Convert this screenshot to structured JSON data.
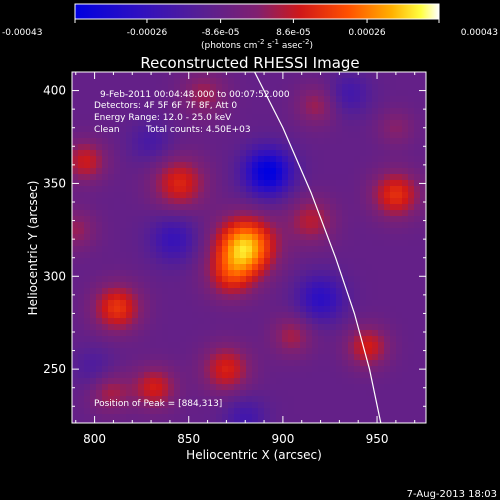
{
  "chart_data": {
    "type": "heatmap",
    "title": "Reconstructed RHESSI Image",
    "xlabel": "Heliocentric X (arcsec)",
    "ylabel": "Heliocentric Y (arcsec)",
    "xlim": [
      788,
      976
    ],
    "ylim": [
      221,
      410
    ],
    "x_ticks": [
      "800",
      "850",
      "900",
      "950"
    ],
    "x_tick_values": [
      800,
      850,
      900,
      950
    ],
    "y_ticks": [
      "250",
      "300",
      "350",
      "400"
    ],
    "y_tick_values": [
      250,
      300,
      350,
      400
    ],
    "colorbar": {
      "ticks": [
        "-0.00043",
        "-0.00026",
        "-8.6e-05",
        "8.6e-05",
        "0.00026",
        "0.00043"
      ],
      "tick_values": [
        -0.00043,
        -0.00026,
        -8.6e-05,
        8.6e-05,
        0.00026,
        0.00043
      ],
      "range": [
        -0.00043,
        0.00043
      ],
      "unit_main": "(photons cm",
      "unit_exp1": "-2",
      "unit_s": " s",
      "unit_exp2": "-1",
      "unit_asec": " asec",
      "unit_exp3": "-2",
      "unit_close": ")",
      "colormap": "blue-purple-red-yellow-white"
    },
    "annotations": {
      "time": "9-Feb-2011 00:04:48.000 to 00:07:52.000",
      "detectors": "Detectors: 4F 5F 6F 7F 8F, Att 0",
      "energy": "Energy Range: 12.0 - 25.0 keV",
      "clean_label": "Clean",
      "counts": "Total counts: 4.50E+03",
      "peak": "Position of Peak = [884,313]"
    },
    "peak": [
      884,
      313
    ],
    "limb_curve": [
      [
        885,
        410
      ],
      [
        900,
        380
      ],
      [
        915,
        345
      ],
      [
        928,
        310
      ],
      [
        938,
        280
      ],
      [
        946,
        250
      ],
      [
        952,
        221
      ]
    ],
    "sources": [
      {
        "x": 880,
        "y": 316,
        "amp": 0.00043,
        "sigma": 11
      },
      {
        "x": 872,
        "y": 300,
        "amp": 0.00018,
        "sigma": 9
      },
      {
        "x": 845,
        "y": 350,
        "amp": 0.00022,
        "sigma": 10
      },
      {
        "x": 812,
        "y": 283,
        "amp": 0.00025,
        "sigma": 9
      },
      {
        "x": 795,
        "y": 362,
        "amp": 0.00019,
        "sigma": 8
      },
      {
        "x": 790,
        "y": 325,
        "amp": 0.00012,
        "sigma": 8
      },
      {
        "x": 832,
        "y": 240,
        "amp": 0.0002,
        "sigma": 8
      },
      {
        "x": 870,
        "y": 250,
        "amp": 0.00021,
        "sigma": 9
      },
      {
        "x": 905,
        "y": 268,
        "amp": 0.00014,
        "sigma": 8
      },
      {
        "x": 915,
        "y": 330,
        "amp": 0.00016,
        "sigma": 9
      },
      {
        "x": 918,
        "y": 392,
        "amp": 0.00013,
        "sigma": 8
      },
      {
        "x": 960,
        "y": 344,
        "amp": 0.00024,
        "sigma": 9
      },
      {
        "x": 960,
        "y": 380,
        "amp": 0.0001,
        "sigma": 7
      },
      {
        "x": 945,
        "y": 262,
        "amp": 0.0002,
        "sigma": 8
      },
      {
        "x": 808,
        "y": 238,
        "amp": 0.00015,
        "sigma": 8
      },
      {
        "x": 858,
        "y": 398,
        "amp": 0.00013,
        "sigma": 9
      },
      {
        "x": 892,
        "y": 356,
        "amp": -0.00035,
        "sigma": 9
      },
      {
        "x": 920,
        "y": 288,
        "amp": -0.0002,
        "sigma": 9
      },
      {
        "x": 842,
        "y": 320,
        "amp": -0.00016,
        "sigma": 9
      },
      {
        "x": 800,
        "y": 250,
        "amp": -9e-05,
        "sigma": 8
      },
      {
        "x": 880,
        "y": 224,
        "amp": -0.00012,
        "sigma": 8
      },
      {
        "x": 935,
        "y": 398,
        "amp": -0.00012,
        "sigma": 8
      },
      {
        "x": 830,
        "y": 372,
        "amp": -0.0001,
        "sigma": 8
      }
    ],
    "baseline": -9e-05
  },
  "footer": {
    "timestamp": "7-Aug-2013 18:03"
  }
}
